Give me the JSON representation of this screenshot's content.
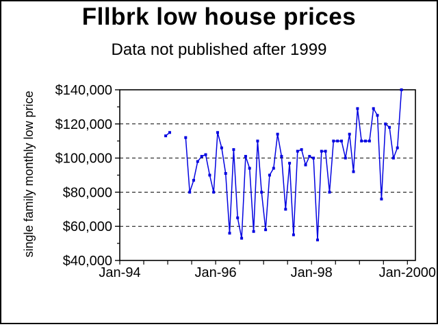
{
  "window": {
    "background_color": "#FFFFFF",
    "frame_color": "#000000"
  },
  "chart_data": {
    "type": "line",
    "title": "Fllbrk low house prices",
    "subtitle": "Data not published after 1999",
    "ylabel": "single family monthly low price",
    "series_color": "#0000E0",
    "text_color": "#000000",
    "grid": "dashed-horizontal",
    "legend": "none",
    "marker": "square",
    "y_axis": {
      "range": [
        40000,
        140000
      ],
      "tick_values": [
        140000,
        120000,
        100000,
        80000,
        60000,
        40000
      ],
      "tick_labels": [
        "$140,000",
        "$120,000",
        "$100,000",
        "$80,000",
        "$60,000",
        "$40,000"
      ],
      "minor_tick_values": [
        130000,
        110000,
        90000,
        70000,
        50000
      ],
      "gridline_values": [
        120000,
        100000,
        80000,
        60000
      ]
    },
    "x_axis": {
      "start_month": "Jan-1994",
      "total_months": 74,
      "minor_tick_month_step": 6,
      "major_ticks": [
        {
          "label": "Jan-94",
          "month_index": 0
        },
        {
          "label": "Jan-96",
          "month_index": 24
        },
        {
          "label": "Jan-98",
          "month_index": 48
        },
        {
          "label": "Jan-2000",
          "month_index": 72
        }
      ]
    },
    "series": [
      {
        "name": "single family monthly low price",
        "segments": [
          {
            "start_month_label": "Dec-1994",
            "start_month_index": 11,
            "values": [
              113000,
              115000
            ]
          },
          {
            "start_month_label": "May-1995",
            "start_month_index": 16,
            "values": [
              112000,
              80000,
              87000,
              98000,
              101000,
              102000,
              90000,
              80000,
              115000,
              106000,
              91000,
              56000,
              105000,
              65000,
              53000,
              101000,
              94000,
              57000,
              110000,
              80000,
              58000,
              90000,
              94000,
              114000,
              101000,
              70000,
              97000,
              55000,
              104000,
              105000,
              96000,
              101000,
              100000,
              52000,
              104000,
              104000,
              80000,
              110000,
              110000,
              110000,
              100000,
              114000,
              92000,
              129000,
              110000,
              110000,
              110000,
              129000,
              125000,
              76000,
              120000,
              118000,
              100000,
              106000,
              140000
            ]
          }
        ]
      }
    ]
  }
}
